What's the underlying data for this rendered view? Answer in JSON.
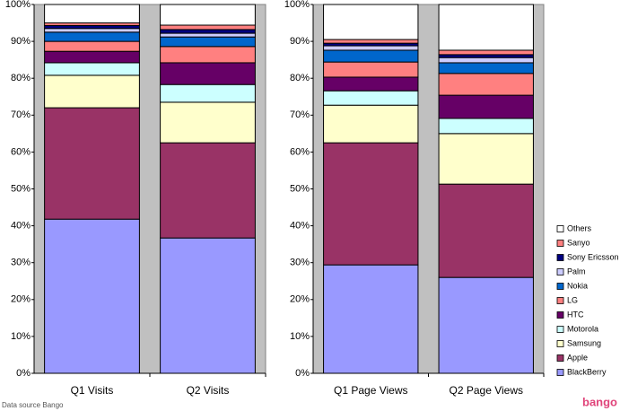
{
  "chart_data": {
    "type": "stacked-bar-100",
    "categories": [
      "Q1 Visits",
      "Q2 Visits",
      "Q1 Page Views",
      "Q2 Page Views"
    ],
    "series": [
      {
        "name": "BlackBerry",
        "color": "#9999ff",
        "values": [
          41.8,
          36.7,
          29.4,
          26.0
        ]
      },
      {
        "name": "Apple",
        "color": "#993366",
        "values": [
          30.2,
          25.8,
          33.1,
          25.3
        ]
      },
      {
        "name": "Samsung",
        "color": "#ffffcc",
        "values": [
          8.8,
          11.0,
          10.2,
          13.7
        ]
      },
      {
        "name": "Motorola",
        "color": "#ccffff",
        "values": [
          3.4,
          4.8,
          3.9,
          4.1
        ]
      },
      {
        "name": "HTC",
        "color": "#660066",
        "values": [
          3.1,
          5.9,
          3.7,
          6.3
        ]
      },
      {
        "name": "LG",
        "color": "#ff8080",
        "values": [
          2.7,
          4.4,
          4.1,
          5.9
        ]
      },
      {
        "name": "Nokia",
        "color": "#0066cc",
        "values": [
          2.5,
          2.6,
          3.2,
          2.9
        ]
      },
      {
        "name": "Palm",
        "color": "#ccccff",
        "values": [
          1.0,
          1.0,
          1.2,
          1.4
        ]
      },
      {
        "name": "Sony Ericsson",
        "color": "#000080",
        "values": [
          0.8,
          1.0,
          0.7,
          0.8
        ]
      },
      {
        "name": "Sanyo",
        "color": "#ff8080",
        "values": [
          0.7,
          1.2,
          1.0,
          1.2
        ]
      },
      {
        "name": "Others",
        "color": "#ffffff",
        "values": [
          5.0,
          5.6,
          9.5,
          12.4
        ]
      }
    ],
    "ylim": [
      0,
      100
    ],
    "yticks": [
      {
        "value": 0,
        "label": "0%"
      },
      {
        "value": 10,
        "label": "10%"
      },
      {
        "value": 20,
        "label": "20%"
      },
      {
        "value": 30,
        "label": "30%"
      },
      {
        "value": 40,
        "label": "40%"
      },
      {
        "value": 50,
        "label": "50%"
      },
      {
        "value": 60,
        "label": "60%"
      },
      {
        "value": 70,
        "label": "70%"
      },
      {
        "value": 80,
        "label": "80%"
      },
      {
        "value": 90,
        "label": "90%"
      },
      {
        "value": 100,
        "label": "100%"
      }
    ],
    "legend": "right",
    "source": "Data source Bango",
    "logo": "bango"
  }
}
